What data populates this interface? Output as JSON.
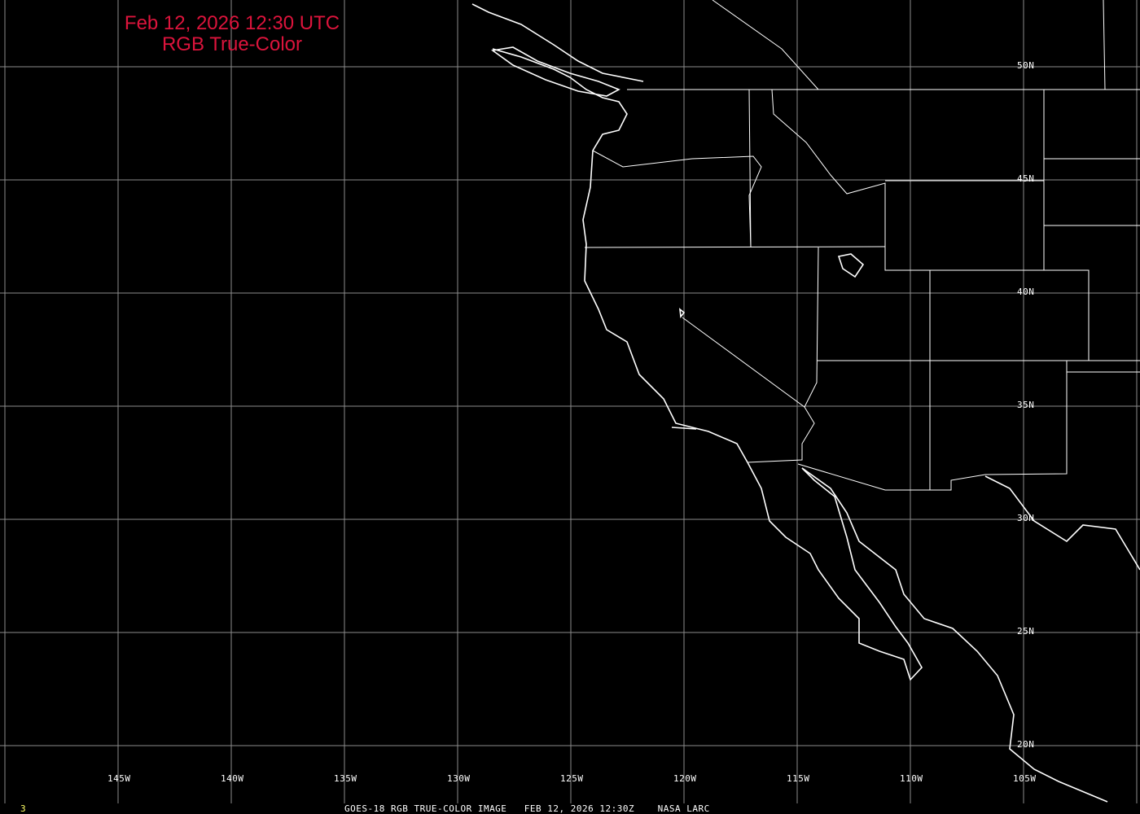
{
  "title": {
    "line1": "Feb 12, 2026 12:30 UTC",
    "line2": "RGB True-Color"
  },
  "footer": {
    "frame": "3",
    "caption": "GOES-18 RGB TRUE-COLOR IMAGE   FEB 12, 2026 12:30Z    NASA LARC"
  },
  "longitude_labels": [
    "145W",
    "140W",
    "135W",
    "130W",
    "125W",
    "120W",
    "115W",
    "110W",
    "105W"
  ],
  "latitude_labels": [
    "50N",
    "45N",
    "40N",
    "35N",
    "30N",
    "25N",
    "20N"
  ],
  "colors": {
    "title": "#dc143c",
    "frame": "#ffff66",
    "grid": "#8c8c8c",
    "coastline": "#ffffff",
    "background": "#000000"
  }
}
